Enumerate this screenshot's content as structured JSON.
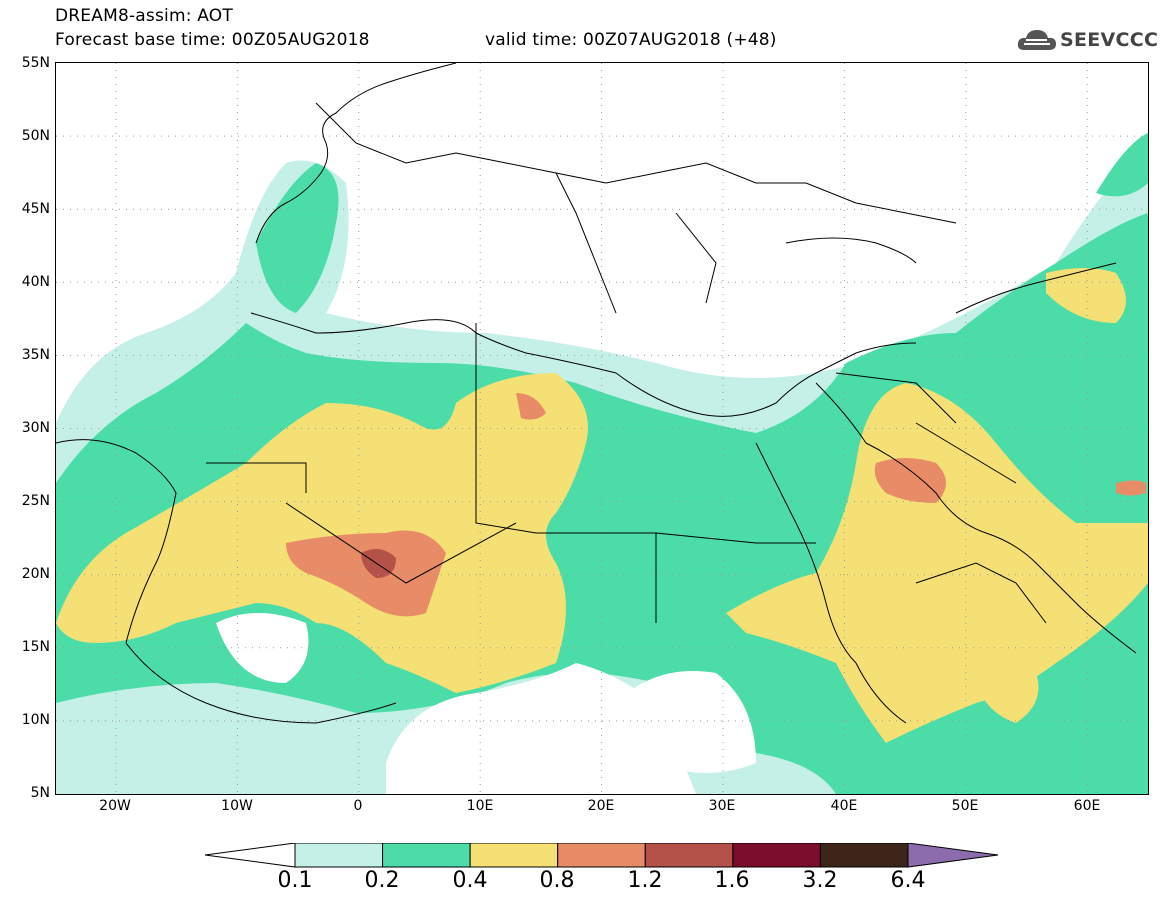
{
  "header": {
    "line1": "DREAM8-assim: AOT",
    "base_time": "Forecast base time: 00Z05AUG2018",
    "valid_time": "valid time: 00Z07AUG2018 (+48)"
  },
  "logo": {
    "text": "SEEVCCC",
    "icon": "cloud-icon"
  },
  "axes": {
    "lat_labels": [
      "55N",
      "50N",
      "45N",
      "40N",
      "35N",
      "30N",
      "25N",
      "20N",
      "15N",
      "10N",
      "5N"
    ],
    "lon_labels": [
      "20W",
      "10W",
      "0",
      "10E",
      "20E",
      "30E",
      "40E",
      "50E",
      "60E"
    ]
  },
  "colorbar": {
    "levels": [
      "0.1",
      "0.2",
      "0.4",
      "0.8",
      "1.2",
      "1.6",
      "3.2",
      "6.4"
    ],
    "colors": [
      "#c4f0e8",
      "#4cdca8",
      "#f4e074",
      "#e88c68",
      "#b4524a",
      "#7c0c2c",
      "#3c2418",
      "#8c6cac"
    ],
    "under_color": "#ffffff"
  },
  "colors": {
    "border": "#000000",
    "grid": "#999999"
  }
}
